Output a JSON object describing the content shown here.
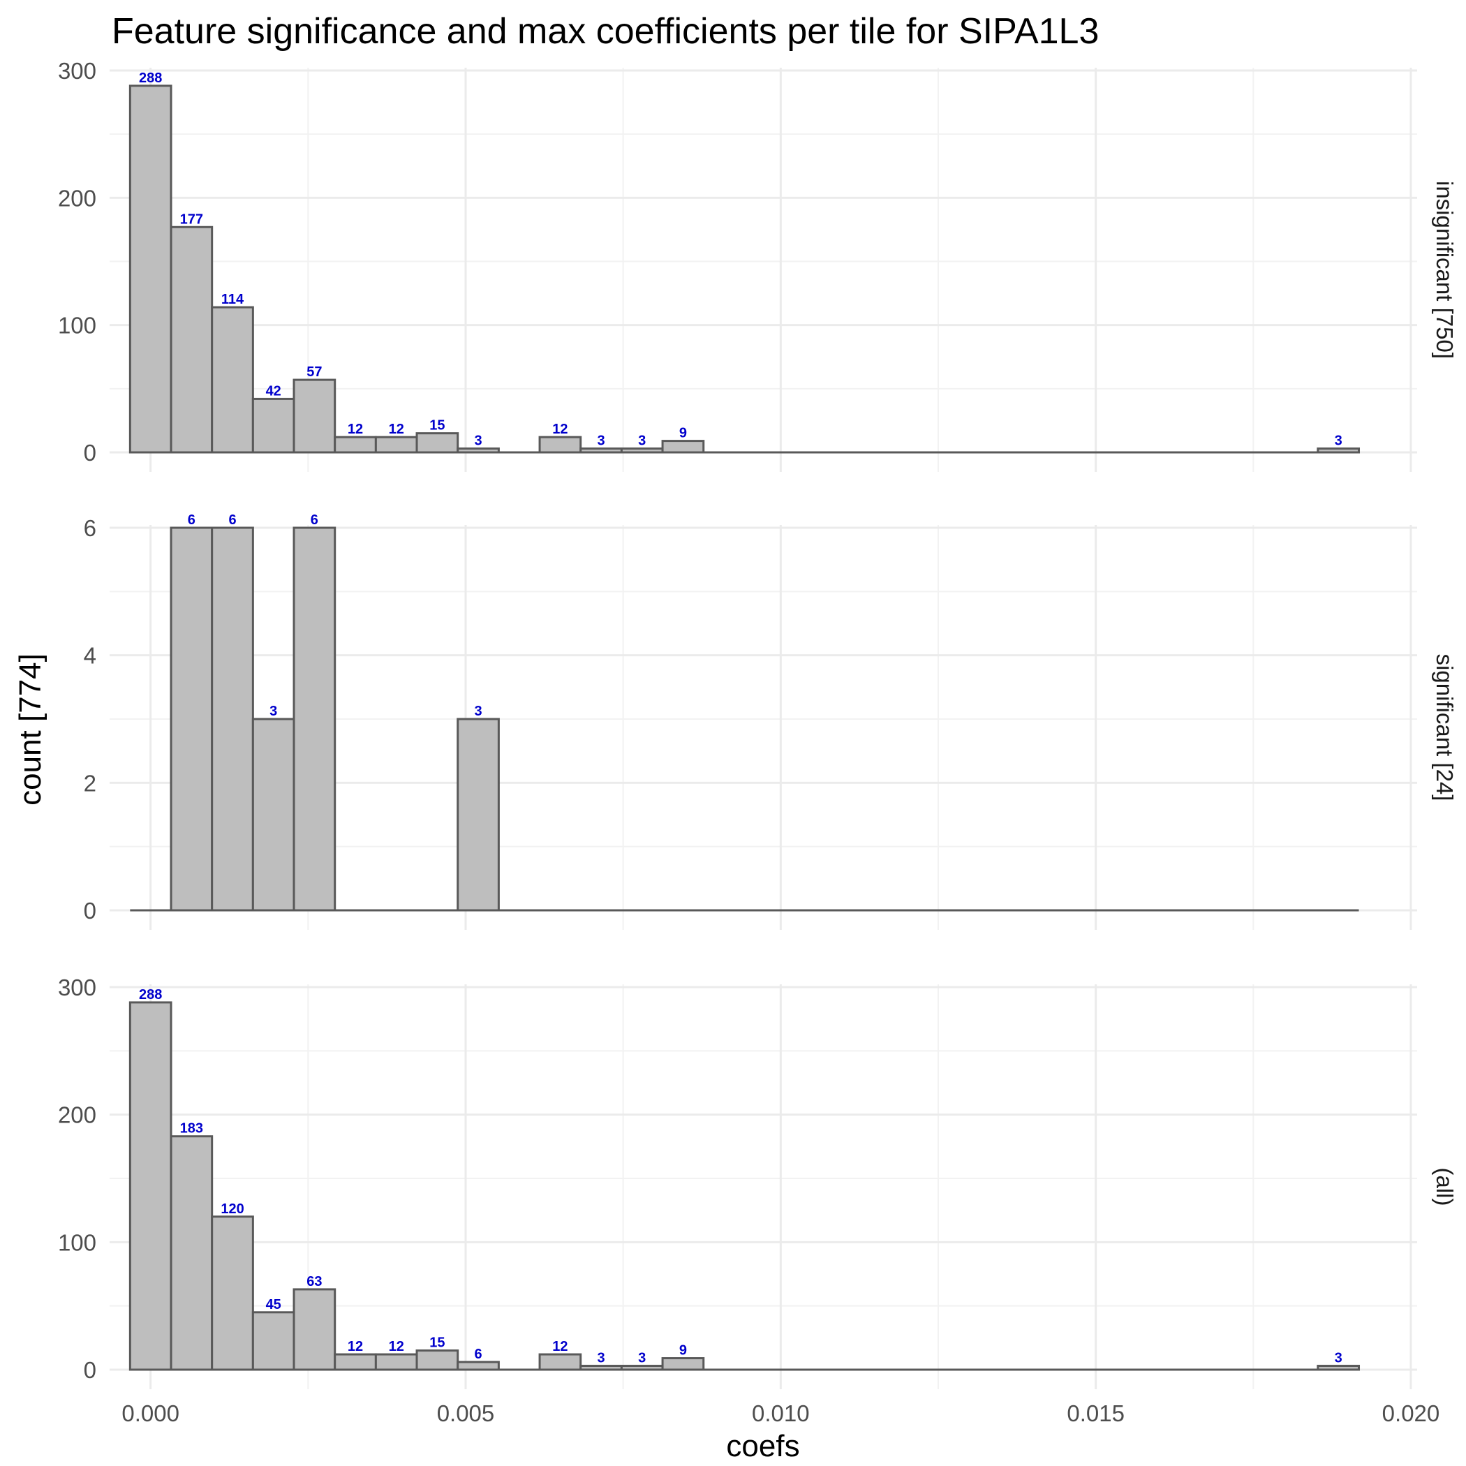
{
  "chart_data": {
    "type": "bar",
    "title": "Feature significance and max coefficients per tile for SIPA1L3",
    "xlabel": "coefs",
    "ylabel": "count [774]",
    "xlim": [
      -0.00065,
      0.0201
    ],
    "x_ticks": [
      "0.000",
      "0.005",
      "0.010",
      "0.015",
      "0.020"
    ],
    "bin_width": 0.00065,
    "bin_centers": [
      0.0,
      0.00065,
      0.0013,
      0.00195,
      0.0026,
      0.00325,
      0.0039,
      0.00455,
      0.0052,
      0.00585,
      0.0065,
      0.00715,
      0.0078,
      0.00845,
      0.0091,
      0.00975,
      0.0104,
      0.01105,
      0.0117,
      0.01235,
      0.013,
      0.01365,
      0.0143,
      0.01495,
      0.0156,
      0.01625,
      0.0169,
      0.01755,
      0.0182,
      0.01885
    ],
    "grid": true,
    "bar_color": "#bebebe",
    "bar_outline": "#595959",
    "label_color": "#0000cc",
    "facets": [
      {
        "strip": "insignificant [750]",
        "ylim": [
          0,
          300
        ],
        "y_ticks": [
          "0",
          "100",
          "200",
          "300"
        ],
        "values": [
          288,
          177,
          114,
          42,
          57,
          12,
          12,
          15,
          3,
          0,
          12,
          3,
          3,
          9,
          0,
          0,
          0,
          0,
          0,
          0,
          0,
          0,
          0,
          0,
          0,
          0,
          0,
          0,
          0,
          3
        ]
      },
      {
        "strip": "significant [24]",
        "ylim": [
          0,
          6
        ],
        "y_ticks": [
          "0",
          "2",
          "4",
          "6"
        ],
        "values": [
          0,
          6,
          6,
          3,
          6,
          0,
          0,
          0,
          3,
          0,
          0,
          0,
          0,
          0,
          0,
          0,
          0,
          0,
          0,
          0,
          0,
          0,
          0,
          0,
          0,
          0,
          0,
          0,
          0,
          0
        ]
      },
      {
        "strip": "(all)",
        "ylim": [
          0,
          300
        ],
        "y_ticks": [
          "0",
          "100",
          "200",
          "300"
        ],
        "values": [
          288,
          183,
          120,
          45,
          63,
          12,
          12,
          15,
          6,
          0,
          12,
          3,
          3,
          9,
          0,
          0,
          0,
          0,
          0,
          0,
          0,
          0,
          0,
          0,
          0,
          0,
          0,
          0,
          0,
          3
        ]
      }
    ]
  }
}
